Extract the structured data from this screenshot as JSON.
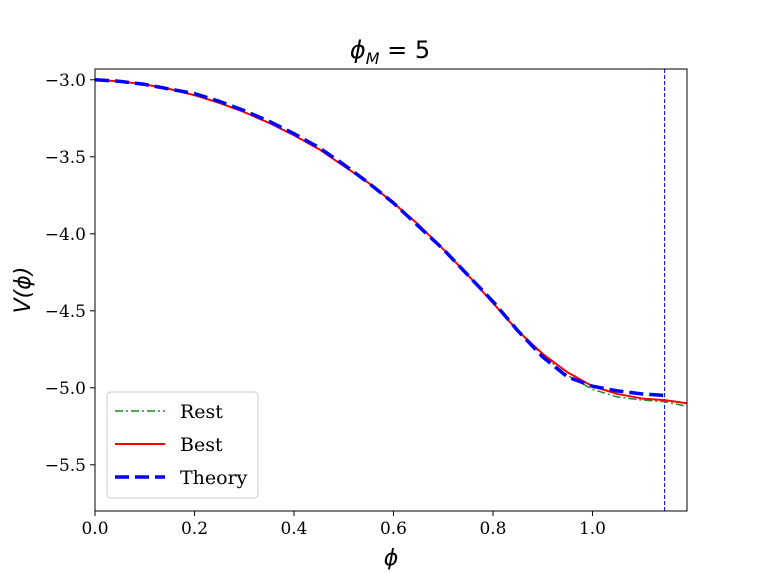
{
  "chart_data": {
    "type": "line",
    "title": {
      "main": "ϕ",
      "sub": "M",
      "rest": " = 5"
    },
    "xlabel": "ϕ",
    "ylabel": "V(ϕ)",
    "xlim": [
      0.0,
      1.19
    ],
    "ylim": [
      -5.8,
      -2.93
    ],
    "xticks": [
      0.0,
      0.2,
      0.4,
      0.6,
      0.8,
      1.0
    ],
    "xtick_labels": [
      "0.0",
      "0.2",
      "0.4",
      "0.6",
      "0.8",
      "1.0"
    ],
    "yticks": [
      -3.0,
      -3.5,
      -4.0,
      -4.5,
      -5.0,
      -5.5
    ],
    "ytick_labels": [
      "−3.0",
      "−3.5",
      "−4.0",
      "−4.5",
      "−5.0",
      "−5.5"
    ],
    "vlines": [
      {
        "x": 1.145,
        "color": "#0000cc",
        "style": "dashed"
      },
      {
        "x": 1.19,
        "color": "#8b0000",
        "style": "solid"
      }
    ],
    "legend_position": "lower-left",
    "series": [
      {
        "name": "Rest",
        "color": "#228b22",
        "style": "dashdot",
        "x": [
          0.0,
          0.05,
          0.1,
          0.15,
          0.2,
          0.25,
          0.3,
          0.35,
          0.4,
          0.45,
          0.5,
          0.55,
          0.6,
          0.65,
          0.7,
          0.75,
          0.8,
          0.85,
          0.9,
          0.95,
          1.0,
          1.05,
          1.1,
          1.145,
          1.19
        ],
        "y": [
          -3.0,
          -3.01,
          -3.03,
          -3.06,
          -3.1,
          -3.15,
          -3.21,
          -3.28,
          -3.36,
          -3.45,
          -3.56,
          -3.67,
          -3.8,
          -3.94,
          -4.1,
          -4.27,
          -4.45,
          -4.63,
          -4.79,
          -4.92,
          -5.01,
          -5.06,
          -5.08,
          -5.09,
          -5.12
        ]
      },
      {
        "name": "Best",
        "color": "#ff0000",
        "style": "solid",
        "x": [
          0.0,
          0.05,
          0.1,
          0.15,
          0.2,
          0.25,
          0.3,
          0.35,
          0.4,
          0.45,
          0.5,
          0.55,
          0.6,
          0.65,
          0.7,
          0.75,
          0.8,
          0.85,
          0.9,
          0.95,
          1.0,
          1.05,
          1.1,
          1.145,
          1.19
        ],
        "y": [
          -3.0,
          -3.01,
          -3.03,
          -3.06,
          -3.1,
          -3.15,
          -3.21,
          -3.28,
          -3.36,
          -3.45,
          -3.56,
          -3.67,
          -3.8,
          -3.94,
          -4.1,
          -4.27,
          -4.45,
          -4.63,
          -4.78,
          -4.9,
          -4.99,
          -5.04,
          -5.07,
          -5.08,
          -5.1
        ]
      },
      {
        "name": "Theory",
        "color": "#0000ff",
        "style": "dashed",
        "x": [
          0.0,
          0.05,
          0.1,
          0.15,
          0.2,
          0.25,
          0.3,
          0.35,
          0.4,
          0.45,
          0.5,
          0.55,
          0.6,
          0.65,
          0.7,
          0.75,
          0.8,
          0.85,
          0.9,
          0.95,
          1.0,
          1.05,
          1.1,
          1.145
        ],
        "y": [
          -3.0,
          -3.01,
          -3.03,
          -3.06,
          -3.09,
          -3.14,
          -3.2,
          -3.27,
          -3.35,
          -3.44,
          -3.55,
          -3.67,
          -3.8,
          -3.95,
          -4.1,
          -4.27,
          -4.44,
          -4.63,
          -4.8,
          -4.93,
          -4.99,
          -5.02,
          -5.04,
          -5.05
        ]
      }
    ]
  }
}
